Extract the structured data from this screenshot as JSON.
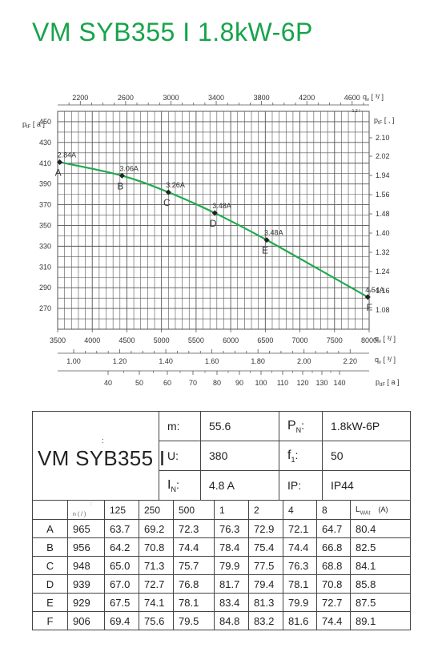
{
  "title": "VM SYB355 I 1.8kW-6P",
  "colors": {
    "title": "#17a34a",
    "curve": "#1faa4f",
    "grid": "#555555"
  },
  "chart_data": {
    "type": "line",
    "x_top": {
      "label": "q",
      "subscript": "v",
      "bracket": "[",
      "unit": "³/",
      "bracket_close": "]",
      "sub_note": "-1.2  /  -",
      "ticks": [
        2200,
        2600,
        3000,
        3400,
        3800,
        4200,
        4600
      ],
      "range": [
        2000,
        4750
      ]
    },
    "x_bottom": {
      "label": "q",
      "subscript": "v",
      "bracket": "[",
      "unit": "³/",
      "bracket_close": "]",
      "ticks": [
        3500,
        4000,
        4500,
        5000,
        5500,
        6000,
        6500,
        7000,
        7500,
        8000
      ],
      "range": [
        3500,
        8000
      ]
    },
    "x_bottom2": {
      "label": "q",
      "subscript": "v",
      "bracket": "[",
      "unit": "³/",
      "bracket_close": "]",
      "ticks": [
        "1.00",
        "1.20",
        "1.40",
        "1.60",
        "1.80",
        "2.00",
        "2.20"
      ],
      "range": [
        1.0,
        2.22
      ]
    },
    "x_bottom3": {
      "label": "p",
      "subscript": "dF",
      "bracket": "[",
      "unit": "a",
      "bracket_close": "]",
      "ticks": [
        40,
        50,
        60,
        70,
        80,
        90,
        100,
        110,
        120,
        130,
        140
      ]
    },
    "y_left": {
      "label": "p",
      "subscript": "tF",
      "bracket": "[",
      "unit": "a",
      "bracket_close": "]",
      "ticks": [
        270,
        290,
        310,
        330,
        350,
        370,
        390,
        410,
        430,
        450
      ],
      "range": [
        250,
        460
      ]
    },
    "y_right": {
      "label": "p",
      "subscript": "tF",
      "bracket": "[",
      "unit": ",",
      "bracket_close": "]",
      "ticks": [
        "1.08",
        "1.16",
        "1.24",
        "1.32",
        "1.40",
        "1.48",
        "1.56",
        "1.94",
        "2.02",
        "2.10"
      ]
    },
    "series": [
      {
        "points": [
          {
            "x": 3530,
            "y": 411,
            "point": "A",
            "current": "2.84A"
          },
          {
            "x": 4430,
            "y": 398,
            "point": "B",
            "current": "3.06A"
          },
          {
            "x": 5100,
            "y": 382,
            "point": "C",
            "current": "3.26A"
          },
          {
            "x": 5770,
            "y": 362,
            "point": "D",
            "current": "3.48A"
          },
          {
            "x": 6520,
            "y": 336,
            "point": "E",
            "current": "3.48A"
          },
          {
            "x": 7980,
            "y": 281,
            "point": "F",
            "current": "4.54A"
          }
        ]
      }
    ],
    "grid": true
  },
  "specs": {
    "colon": ":",
    "model": "VM SYB355 I",
    "m_label": "m",
    "m_value": "55.6",
    "pn_label": "P",
    "pn_sub": "N",
    "pn_value": "1.8kW-6P",
    "u_label": "U:",
    "u_value": "380",
    "f_label": "f",
    "f_sub": "1",
    "f_value": "50",
    "in_label": "I",
    "in_sub": "N",
    "in_value": "4.8  A",
    "ip_label": "IP:",
    "ip_value": "IP44"
  },
  "performance": {
    "n_label": "n (  /  )",
    "columns": [
      "125",
      "250",
      "500",
      "1",
      "2",
      "4",
      "8"
    ],
    "lwa_label": "L",
    "lwa_sub": "WAt",
    "lwa_unit": "(A)",
    "rows": [
      {
        "point": "A",
        "n": "965",
        "vals": [
          "63.7",
          "69.2",
          "72.3",
          "76.3",
          "72.9",
          "72.1",
          "64.7"
        ],
        "lwa": "80.4"
      },
      {
        "point": "B",
        "n": "956",
        "vals": [
          "64.2",
          "70.8",
          "74.4",
          "78.4",
          "75.4",
          "74.4",
          "66.8"
        ],
        "lwa": "82.5"
      },
      {
        "point": "C",
        "n": "948",
        "vals": [
          "65.0",
          "71.3",
          "75.7",
          "79.9",
          "77.5",
          "76.3",
          "68.8"
        ],
        "lwa": "84.1"
      },
      {
        "point": "D",
        "n": "939",
        "vals": [
          "67.0",
          "72.7",
          "76.8",
          "81.7",
          "79.4",
          "78.1",
          "70.8"
        ],
        "lwa": "85.8"
      },
      {
        "point": "E",
        "n": "929",
        "vals": [
          "67.5",
          "74.1",
          "78.1",
          "83.4",
          "81.3",
          "79.9",
          "72.7"
        ],
        "lwa": "87.5"
      },
      {
        "point": "F",
        "n": "906",
        "vals": [
          "69.4",
          "75.6",
          "79.5",
          "84.8",
          "83.2",
          "81.6",
          "74.4"
        ],
        "lwa": "89.1"
      }
    ]
  }
}
